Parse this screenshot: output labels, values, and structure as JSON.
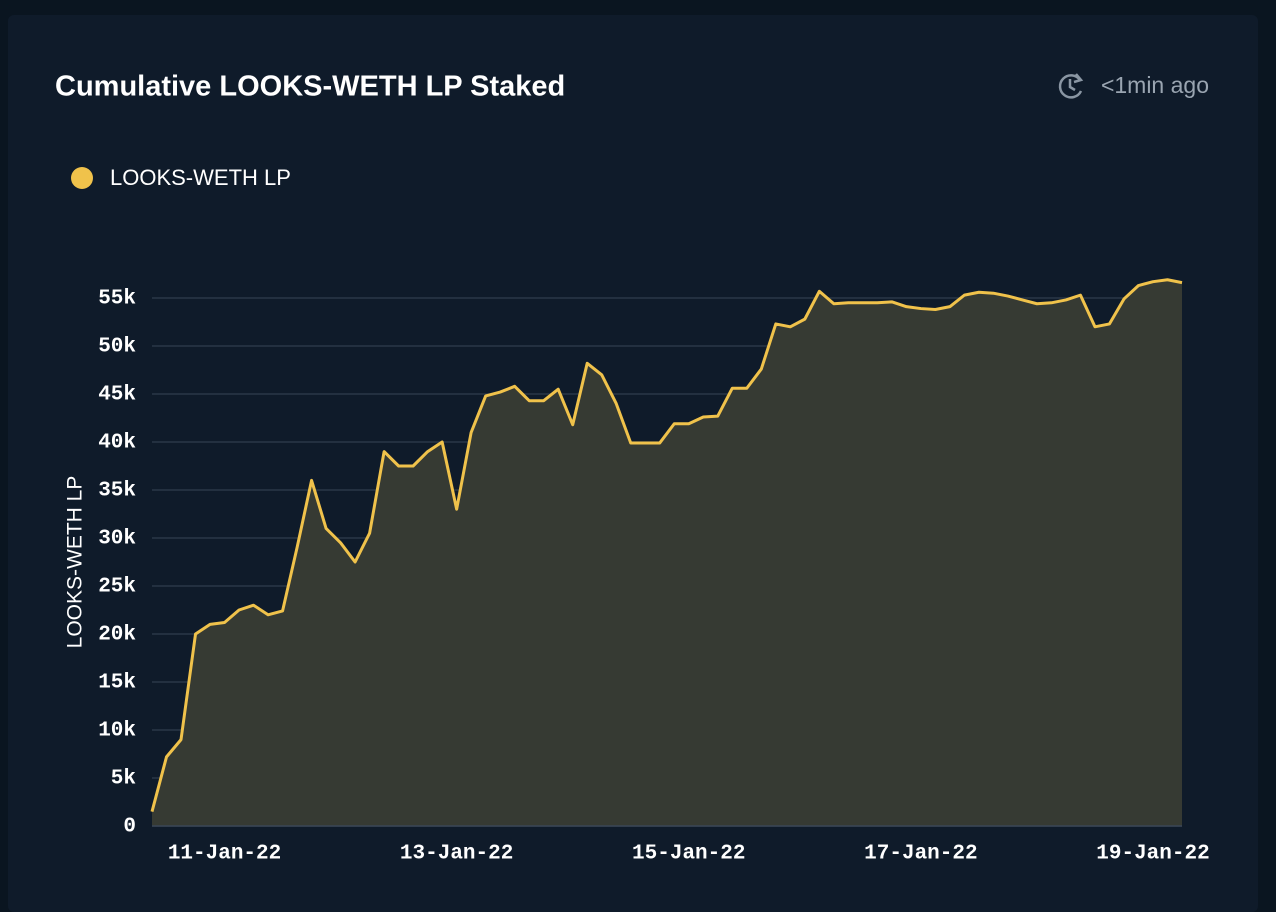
{
  "chart_data": {
    "type": "area",
    "title": "Cumulative LOOKS-WETH LP Staked",
    "updated": "<1min ago",
    "ylabel": "LOOKS-WETH LP",
    "categories": [
      null,
      null,
      null,
      null,
      null,
      "11-Jan-22",
      null,
      null,
      null,
      null,
      null,
      null,
      null,
      null,
      null,
      null,
      null,
      null,
      null,
      null,
      null,
      "13-Jan-22",
      null,
      null,
      null,
      null,
      null,
      null,
      null,
      null,
      null,
      null,
      null,
      null,
      null,
      null,
      null,
      "15-Jan-22",
      null,
      null,
      null,
      null,
      null,
      null,
      null,
      null,
      null,
      null,
      null,
      null,
      null,
      null,
      null,
      "17-Jan-22",
      null,
      null,
      null,
      null,
      null,
      null,
      null,
      null,
      null,
      null,
      null,
      null,
      null,
      null,
      null,
      "19-Jan-22",
      null,
      null
    ],
    "series": [
      {
        "name": "LOOKS-WETH LP",
        "color": "#f0c24b",
        "fill": "#363a33",
        "values": [
          1500,
          7200,
          9000,
          20000,
          21000,
          21200,
          22500,
          23000,
          22000,
          22400,
          29000,
          36000,
          31000,
          29500,
          27500,
          30500,
          39000,
          37500,
          37500,
          39000,
          40000,
          33000,
          41000,
          44800,
          45200,
          45800,
          44300,
          44300,
          45500,
          41800,
          48200,
          47000,
          44000,
          39900,
          39900,
          39900,
          41900,
          41900,
          42600,
          42700,
          45600,
          45600,
          47600,
          52300,
          52000,
          52800,
          55700,
          54400,
          54500,
          54500,
          54500,
          54600,
          54100,
          53900,
          53800,
          54100,
          55300,
          55600,
          55500,
          55200,
          54800,
          54400,
          54500,
          54800,
          55300,
          52000,
          52300,
          54900,
          56300,
          56700,
          56900,
          56600
        ]
      }
    ],
    "ylim": [
      0,
      57500
    ],
    "yticks": [
      0,
      {
        "value": 5000,
        "label": "5k"
      },
      {
        "value": 10000,
        "label": "10k"
      },
      {
        "value": 15000,
        "label": "15k"
      },
      {
        "value": 20000,
        "label": "20k"
      },
      {
        "value": 25000,
        "label": "25k"
      },
      {
        "value": 30000,
        "label": "30k"
      },
      {
        "value": 35000,
        "label": "35k"
      },
      {
        "value": 40000,
        "label": "40k"
      },
      {
        "value": 45000,
        "label": "45k"
      },
      {
        "value": 50000,
        "label": "50k"
      },
      {
        "value": 55000,
        "label": "55k"
      }
    ],
    "grid": true
  }
}
